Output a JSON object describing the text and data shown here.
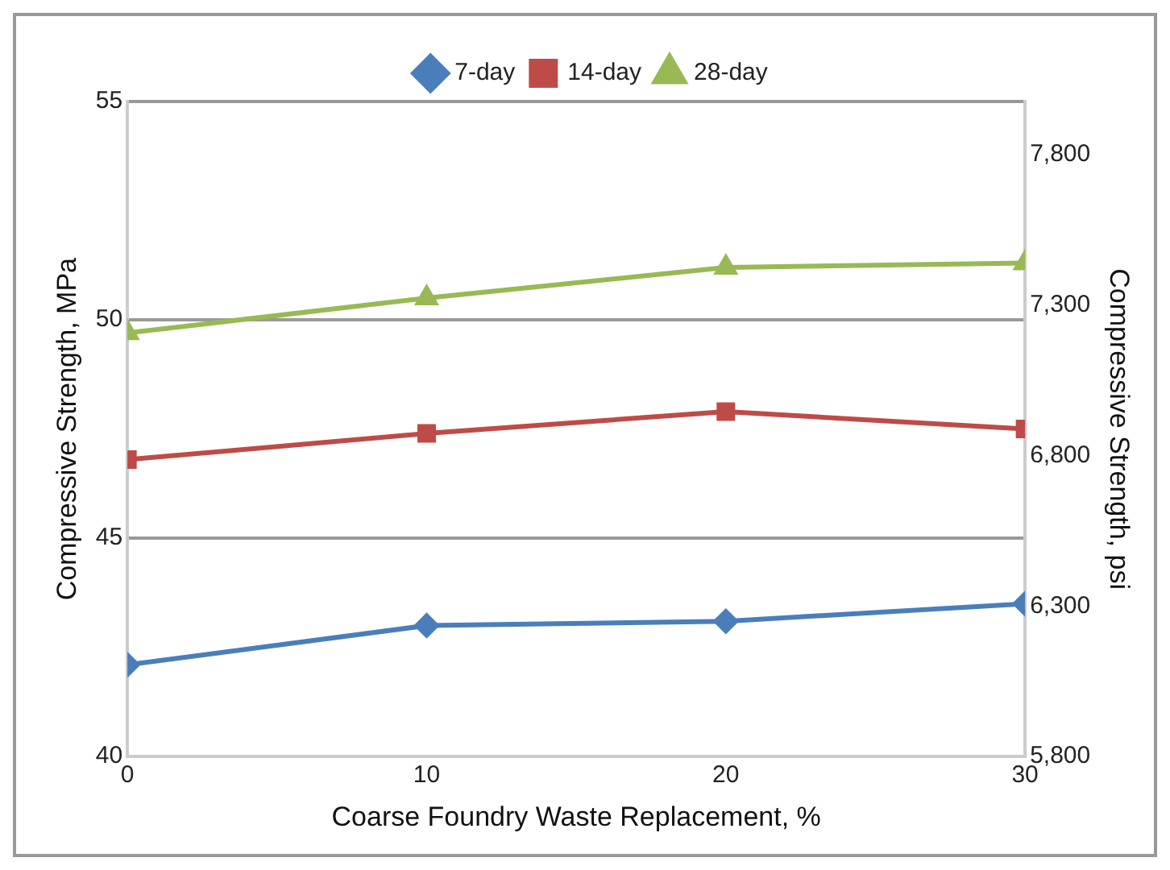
{
  "chart_data": {
    "type": "line",
    "xlabel": "Coarse Foundry Waste Replacement, %",
    "ylabel": "Compressive Strength, MPa",
    "y2label": "Compressive Strength, psi",
    "x": [
      0,
      10,
      20,
      30
    ],
    "xlim": [
      0,
      30
    ],
    "xticks": [
      0,
      10,
      20,
      30
    ],
    "ylim": [
      40,
      55
    ],
    "yticks": [
      40,
      45,
      50,
      55
    ],
    "y2lim": [
      5800,
      7977
    ],
    "y2ticks": [
      {
        "value": 5800,
        "label": "5,800"
      },
      {
        "value": 6300,
        "label": "6,300"
      },
      {
        "value": 6800,
        "label": "6,800"
      },
      {
        "value": 7300,
        "label": "7,300"
      },
      {
        "value": 7800,
        "label": "7,800"
      }
    ],
    "grid": "y",
    "legend": "top",
    "line_style": "solid",
    "series": [
      {
        "name": "7-day",
        "color": "#4a7ebb",
        "marker": "diamond",
        "values": [
          42.1,
          43.0,
          43.1,
          43.5
        ]
      },
      {
        "name": "14-day",
        "color": "#be4b48",
        "marker": "square",
        "values": [
          46.8,
          47.4,
          47.9,
          47.5
        ]
      },
      {
        "name": "28-day",
        "color": "#98b954",
        "marker": "triangle",
        "values": [
          49.7,
          50.5,
          51.2,
          51.3
        ]
      }
    ]
  }
}
